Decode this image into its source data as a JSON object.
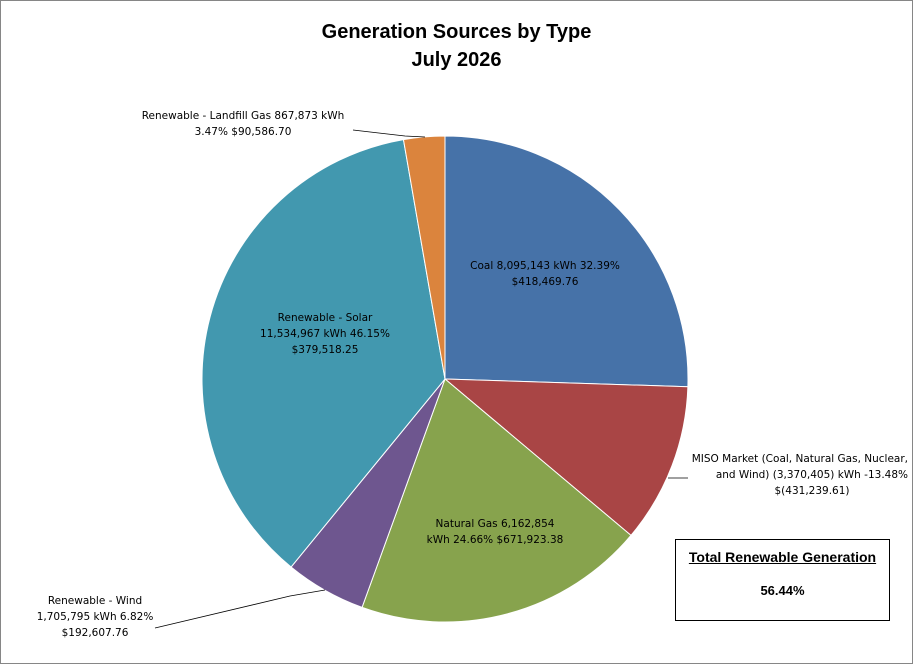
{
  "chart_data": {
    "type": "pie",
    "title": "Generation Sources by Type",
    "subtitle": "July 2026",
    "slices": [
      {
        "key": "coal",
        "name": "Coal",
        "kwh": 8095143,
        "kwh_text": "8,095,143",
        "percent": 32.39,
        "percent_text": "32.39%",
        "cost_text": "$418,469.76",
        "color": "#4672A8"
      },
      {
        "key": "miso",
        "name": "MISO Market (Coal, Natural Gas, Nuclear, and Wind)",
        "kwh": -3370405,
        "kwh_text": "(3,370,405)",
        "percent": -13.48,
        "percent_text": "-13.48%",
        "cost_text": "$(431,239.61)",
        "color": "#A94545"
      },
      {
        "key": "natgas",
        "name": "Natural Gas",
        "kwh": 6162854,
        "kwh_text": "6,162,854",
        "percent": 24.66,
        "percent_text": "24.66%",
        "cost_text": "$671,923.38",
        "color": "#87A34D"
      },
      {
        "key": "wind",
        "name": "Renewable - Wind",
        "kwh": 1705795,
        "kwh_text": "1,705,795",
        "percent": 6.82,
        "percent_text": "6.82%",
        "cost_text": "$192,607.76",
        "color": "#6E568F"
      },
      {
        "key": "solar",
        "name": "Renewable - Solar",
        "kwh": 11534967,
        "kwh_text": "11,534,967",
        "percent": 46.15,
        "percent_text": "46.15%",
        "cost_text": "$379,518.25",
        "color": "#4298AF"
      },
      {
        "key": "landfill",
        "name": "Renewable - Landfill Gas",
        "kwh": 867873,
        "kwh_text": "867,873",
        "percent": 3.47,
        "percent_text": "3.47%",
        "cost_text": "$90,586.70",
        "color": "#DB843D"
      }
    ]
  },
  "labels": {
    "coal": [
      "Coal  8,095,143   kWh  32.39%",
      "$418,469.76"
    ],
    "miso": [
      "MISO Market (Coal, Natural Gas, Nuclear,",
      "and Wind)  (3,370,405)  kWh  -13.48%",
      "$(431,239.61)"
    ],
    "natgas": [
      "Natural Gas  6,162,854",
      "kWh  24.66%  $671,923.38"
    ],
    "wind": [
      "Renewable - Wind",
      "1,705,795   kWh  6.82%",
      "$192,607.76"
    ],
    "solar": [
      "Renewable - Solar",
      "11,534,967  kWh  46.15%",
      "$379,518.25"
    ],
    "landfill": [
      "Renewable - Landfill Gas  867,873   kWh",
      "3.47%  $90,586.70"
    ]
  },
  "summary": {
    "title": "Total Renewable Generation",
    "value": "56.44%"
  }
}
